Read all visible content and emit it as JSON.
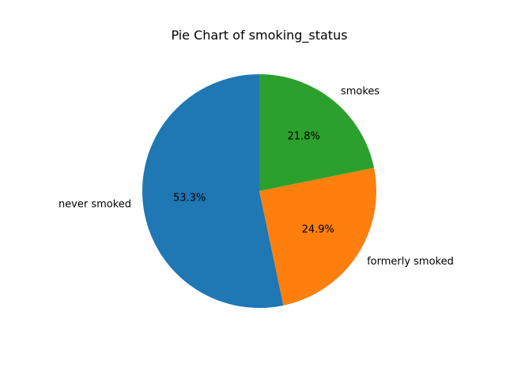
{
  "chart_data": {
    "type": "pie",
    "title": "Pie Chart of smoking_status",
    "categories": [
      "never smoked",
      "formerly smoked",
      "smokes"
    ],
    "values": [
      53.3,
      24.9,
      21.8
    ],
    "percent_labels": [
      "53.3%",
      "24.9%",
      "21.8%"
    ],
    "colors": [
      "#1f77b4",
      "#ff7f0e",
      "#2ca02c"
    ],
    "start_angle_deg": 90,
    "direction": "counterclockwise",
    "legend": "none"
  }
}
